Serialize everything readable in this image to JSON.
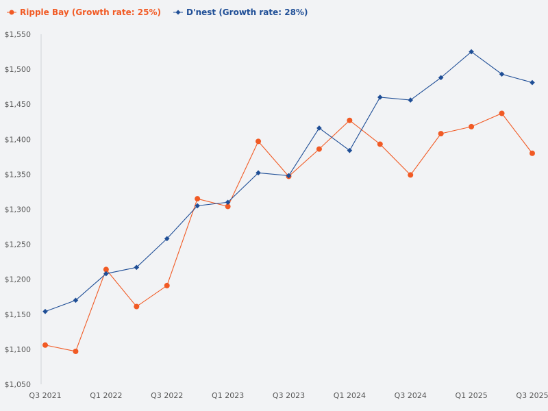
{
  "chart_data": {
    "type": "line",
    "title": "",
    "xlabel": "",
    "ylabel": "",
    "ylim": [
      1050,
      1550
    ],
    "y_ticks": [
      "$1,050",
      "$1,100",
      "$1,150",
      "$1,200",
      "$1,250",
      "$1,300",
      "$1,350",
      "$1,400",
      "$1,450",
      "$1,500",
      "$1,550"
    ],
    "x_tick_labels": [
      "Q3 2021",
      "Q1 2022",
      "Q3 2022",
      "Q1 2023",
      "Q3 2023",
      "Q1 2024",
      "Q3 2024",
      "Q1 2025",
      "Q3 2025"
    ],
    "categories": [
      "Q3 2021",
      "Q4 2021",
      "Q1 2022",
      "Q2 2022",
      "Q3 2022",
      "Q4 2022",
      "Q1 2023",
      "Q2 2023",
      "Q3 2023",
      "Q4 2023",
      "Q1 2024",
      "Q2 2024",
      "Q3 2024",
      "Q4 2024",
      "Q1 2025",
      "Q2 2025",
      "Q3 2025"
    ],
    "series": [
      {
        "name": "Ripple Bay (Growth rate: 25%)",
        "color": "#f15a24",
        "marker": "circle",
        "values": [
          1106,
          1097,
          1214,
          1161,
          1191,
          1315,
          1304,
          1397,
          1347,
          1386,
          1427,
          1393,
          1349,
          1408,
          1418,
          1437,
          1380
        ]
      },
      {
        "name": "D'nest (Growth rate: 28%)",
        "color": "#1f4e96",
        "marker": "diamond",
        "values": [
          1154,
          1170,
          1208,
          1217,
          1258,
          1305,
          1310,
          1352,
          1348,
          1416,
          1384,
          1460,
          1456,
          1488,
          1525,
          1493,
          1481
        ]
      }
    ]
  }
}
